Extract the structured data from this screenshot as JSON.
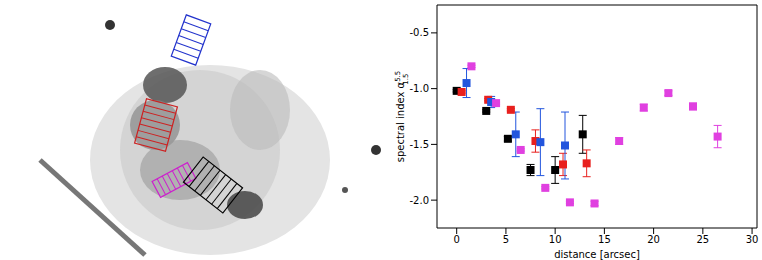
{
  "chart_data": {
    "type": "scatter",
    "x_label": "distance [arcsec]",
    "y_label": {
      "text": "spectral index α",
      "sup": "5.5",
      "sub": "1.5"
    },
    "xlim": [
      -2,
      30.5
    ],
    "xticks": [
      0,
      5,
      10,
      15,
      20,
      25,
      30
    ],
    "ylim": [
      -2.25,
      -0.25
    ],
    "yticks": [
      {
        "value": -2,
        "label": "-2.0"
      },
      {
        "value": -1.5,
        "label": "-1.5"
      },
      {
        "value": -1,
        "label": "-1.0"
      },
      {
        "value": -0.5,
        "label": "-0.5"
      }
    ],
    "marker": "square",
    "series": [
      {
        "color": "#000000",
        "x": [
          0,
          3,
          5.2,
          7.5,
          10,
          12.8
        ],
        "values": [
          -1.02,
          -1.2,
          -1.45,
          -1.73,
          -1.73,
          -1.41
        ],
        "errors": [
          0.01,
          0.01,
          0.02,
          0.05,
          0.12,
          0.17
        ]
      },
      {
        "color": "#e8201e",
        "x": [
          0.5,
          3.2,
          5.5,
          8,
          10.8,
          13.2
        ],
        "values": [
          -1.03,
          -1.1,
          -1.19,
          -1.47,
          -1.68,
          -1.67
        ],
        "errors": [
          0.01,
          0.01,
          0.01,
          0.1,
          0.1,
          0.12
        ]
      },
      {
        "color": "#2255dd",
        "x": [
          1,
          3.5,
          6,
          8.5,
          11
        ],
        "values": [
          -0.95,
          -1.12,
          -1.41,
          -1.48,
          -1.51
        ],
        "errors": [
          0.13,
          0.05,
          0.2,
          0.3,
          0.3
        ]
      },
      {
        "color": "#e040e0",
        "x": [
          1.5,
          4,
          6.5,
          9,
          11.5,
          14,
          16.5,
          19,
          21.5,
          24,
          26.5
        ],
        "values": [
          -0.8,
          -1.13,
          -1.55,
          -1.89,
          -2.02,
          -2.03,
          -1.47,
          -1.17,
          -1.04,
          -1.16,
          -1.43
        ],
        "errors": [
          0.01,
          0.01,
          0.01,
          0.01,
          0.01,
          0.02,
          0.03,
          0.03,
          0.02,
          0.03,
          0.1
        ]
      }
    ]
  }
}
